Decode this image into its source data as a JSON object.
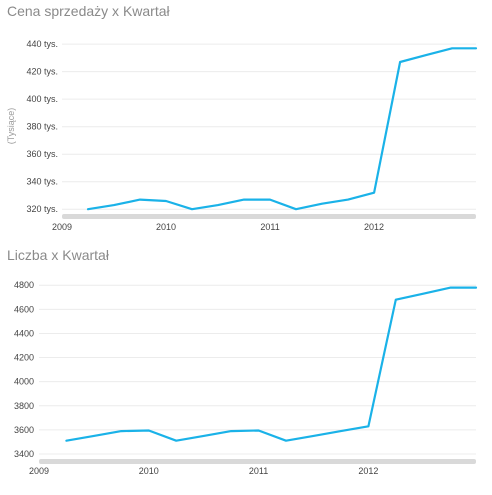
{
  "colors": {
    "series": "#1AB2E8",
    "scrollbar": "#d9d9d9",
    "grid": "#ececec"
  },
  "chart_data": [
    {
      "type": "line",
      "title": "Cena sprzedaży x Kwartał",
      "xlabel": "",
      "ylabel": "(Tysiące)",
      "ylim": [
        318,
        443
      ],
      "xlim": [
        2009.0,
        2012.98
      ],
      "grid": true,
      "y_ticks": [
        {
          "value": 320,
          "label": "320 tys."
        },
        {
          "value": 340,
          "label": "340 tys."
        },
        {
          "value": 360,
          "label": "360 tys."
        },
        {
          "value": 380,
          "label": "380 tys."
        },
        {
          "value": 400,
          "label": "400 tys."
        },
        {
          "value": 420,
          "label": "420 tys."
        },
        {
          "value": 440,
          "label": "440 tys."
        }
      ],
      "x_ticks": [
        {
          "value": 2009,
          "label": "2009"
        },
        {
          "value": 2010,
          "label": "2010"
        },
        {
          "value": 2011,
          "label": "2011"
        },
        {
          "value": 2012,
          "label": "2012"
        }
      ],
      "series": [
        {
          "x": [
            2009.25,
            2009.5,
            2009.75,
            2010.0,
            2010.25,
            2010.5,
            2010.75,
            2011.0,
            2011.25,
            2011.5,
            2011.75,
            2012.0,
            2012.25,
            2012.5,
            2012.75,
            2013.0
          ],
          "values": [
            320,
            323,
            327,
            326,
            320,
            323,
            327,
            327,
            320,
            324,
            327,
            332,
            427,
            432,
            437,
            437
          ]
        }
      ]
    },
    {
      "type": "line",
      "title": "Liczba x Kwartał",
      "xlabel": "",
      "ylabel": "",
      "ylim": [
        3375,
        4835
      ],
      "xlim": [
        2009.0,
        2012.98
      ],
      "grid": true,
      "y_ticks": [
        {
          "value": 3400,
          "label": "3400"
        },
        {
          "value": 3600,
          "label": "3600"
        },
        {
          "value": 3800,
          "label": "3800"
        },
        {
          "value": 4000,
          "label": "4000"
        },
        {
          "value": 4200,
          "label": "4200"
        },
        {
          "value": 4400,
          "label": "4400"
        },
        {
          "value": 4600,
          "label": "4600"
        },
        {
          "value": 4800,
          "label": "4800"
        }
      ],
      "x_ticks": [
        {
          "value": 2009,
          "label": "2009"
        },
        {
          "value": 2010,
          "label": "2010"
        },
        {
          "value": 2011,
          "label": "2011"
        },
        {
          "value": 2012,
          "label": "2012"
        }
      ],
      "series": [
        {
          "x": [
            2009.25,
            2009.5,
            2009.75,
            2010.0,
            2010.25,
            2010.5,
            2010.75,
            2011.0,
            2011.25,
            2011.5,
            2011.75,
            2012.0,
            2012.25,
            2012.5,
            2012.75,
            2013.0
          ],
          "values": [
            3510,
            3550,
            3590,
            3595,
            3510,
            3550,
            3590,
            3595,
            3510,
            3550,
            3590,
            3630,
            4680,
            4730,
            4780,
            4780
          ]
        }
      ]
    }
  ]
}
